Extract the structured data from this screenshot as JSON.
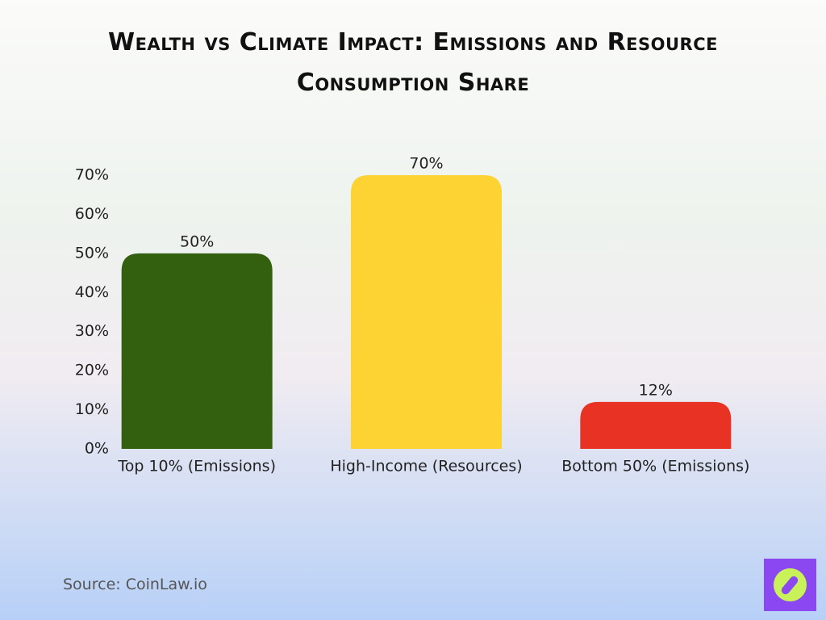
{
  "chart_data": {
    "type": "bar",
    "title": "Wealth vs Climate Impact: Emissions and Resource Consumption Share",
    "categories": [
      "Top 10% (Emissions)",
      "High-Income (Resources)",
      "Bottom 50% (Emissions)"
    ],
    "values": [
      50,
      70,
      12
    ],
    "value_labels": [
      "50%",
      "70%",
      "12%"
    ],
    "colors": [
      "#33600f",
      "#fdd233",
      "#e83324"
    ],
    "ylim": [
      0,
      70
    ],
    "yticks": [
      {
        "value": 0,
        "label": "0%"
      },
      {
        "value": 10,
        "label": "10%"
      },
      {
        "value": 20,
        "label": "20%"
      },
      {
        "value": 30,
        "label": "30%"
      },
      {
        "value": 40,
        "label": "40%"
      },
      {
        "value": 50,
        "label": "50%"
      },
      {
        "value": 60,
        "label": "60%"
      },
      {
        "value": 70,
        "label": "70%"
      }
    ],
    "grid": false,
    "source": "Source: CoinLaw.io"
  }
}
